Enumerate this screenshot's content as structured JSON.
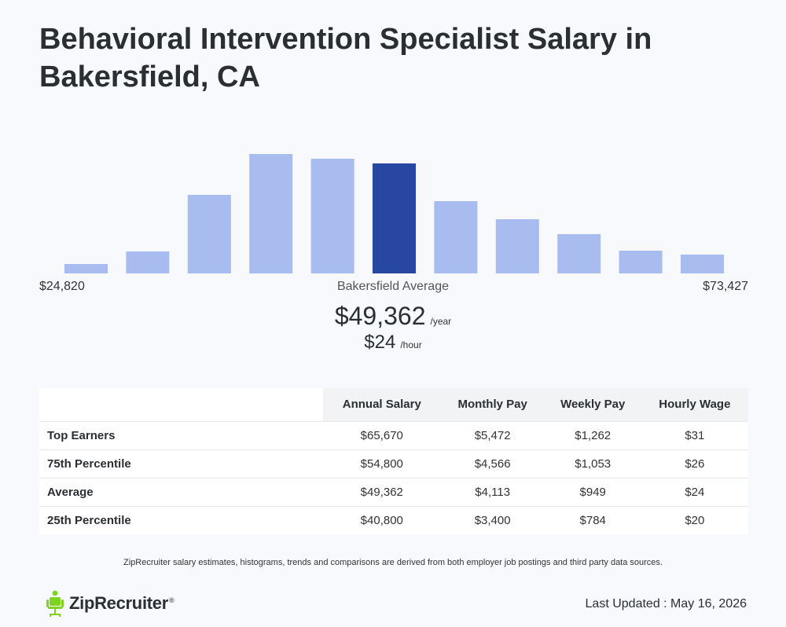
{
  "page": {
    "title": "Behavioral Intervention Specialist Salary in Bakersfield, CA"
  },
  "chart_data": {
    "type": "bar",
    "range_min": "$24,820",
    "range_max": "$73,427",
    "avg_label": "Bakersfield Average",
    "highlight_index": 5,
    "values": [
      12,
      28,
      100,
      152,
      146,
      140,
      92,
      69,
      50,
      29,
      24
    ],
    "ylim": [
      0,
      152
    ],
    "colors": {
      "bar": "#a9bcf0",
      "highlight": "#2847a3"
    }
  },
  "average": {
    "annual": "$49,362",
    "annual_unit": "/year",
    "hourly": "$24",
    "hourly_unit": "/hour"
  },
  "table": {
    "headers": [
      "Annual Salary",
      "Monthly Pay",
      "Weekly Pay",
      "Hourly Wage"
    ],
    "rows": [
      {
        "label": "Top Earners",
        "cells": [
          "$65,670",
          "$5,472",
          "$1,262",
          "$31"
        ]
      },
      {
        "label": "75th Percentile",
        "cells": [
          "$54,800",
          "$4,566",
          "$1,053",
          "$26"
        ]
      },
      {
        "label": "Average",
        "cells": [
          "$49,362",
          "$4,113",
          "$949",
          "$24"
        ]
      },
      {
        "label": "25th Percentile",
        "cells": [
          "$40,800",
          "$3,400",
          "$784",
          "$20"
        ]
      }
    ]
  },
  "footer": {
    "disclaimer": "ZipRecruiter salary estimates, histograms, trends and comparisons are derived from both employer job postings and third party data sources.",
    "logo_text": "ZipRecruiter",
    "logo_mark": "®",
    "updated": "Last Updated : May 16, 2026"
  },
  "icons": {
    "logo": "chair-person-icon"
  }
}
